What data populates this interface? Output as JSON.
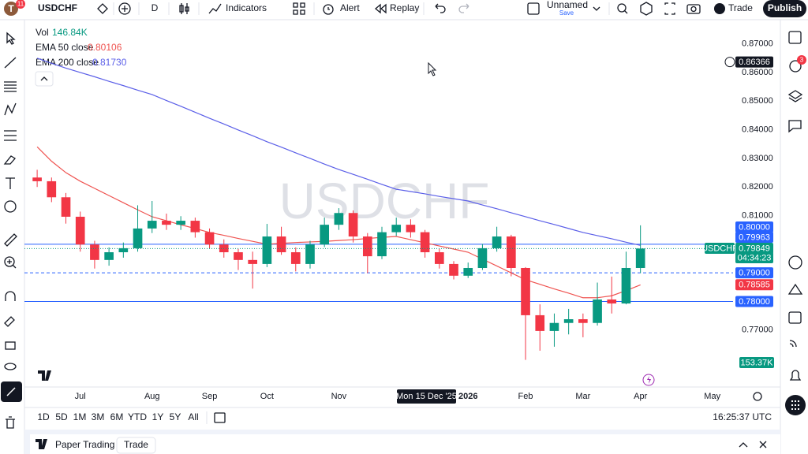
{
  "toolbar": {
    "avatar": "T",
    "avatar_badge": "11",
    "symbol": "USDCHF",
    "interval": "D",
    "indicators": "Indicators",
    "alert": "Alert",
    "replay": "Replay",
    "layout_name": "Unnamed",
    "save": "Save",
    "trade": "Trade",
    "publish": "Publish"
  },
  "side_badge": "3",
  "chart_data": {
    "type": "candlestick",
    "title": "USDCHF",
    "categories": [
      null,
      null,
      null,
      "Jul",
      null,
      null,
      null,
      null,
      "Aug",
      null,
      null,
      null,
      "Sep",
      null,
      null,
      null,
      "Oct",
      null,
      null,
      null,
      null,
      "Nov",
      null,
      null,
      null,
      null,
      null,
      null,
      null,
      null,
      "2026",
      null,
      null,
      null,
      "Feb",
      null,
      null,
      null,
      "Mar",
      null,
      null,
      null,
      "Apr",
      null,
      null,
      null,
      null,
      "May",
      null
    ],
    "open": [
      0.8233,
      0.822,
      0.8164,
      0.8096,
      0.7999,
      0.7945,
      0.7972,
      0.7986,
      0.8055,
      0.8082,
      0.8068,
      0.8082,
      0.8042,
      0.7999,
      0.7972,
      0.7945,
      0.7931,
      0.8027,
      0.7972,
      0.7931,
      0.7999,
      0.8068,
      0.8109,
      0.8027,
      0.7958,
      0.8042,
      0.8068,
      0.8042,
      0.7972,
      0.7931,
      0.789,
      0.7917,
      0.7986,
      0.8027,
      0.7917,
      0.7752,
      0.7697,
      0.7725,
      0.7738,
      0.7725,
      0.7807,
      0.7793,
      0.7917,
      null,
      null,
      null,
      null,
      null,
      null
    ],
    "high": [
      0.826,
      0.8233,
      0.8179,
      0.8114,
      0.8012,
      0.7989,
      0.8006,
      0.8136,
      0.8151,
      0.8107,
      0.8098,
      0.8093,
      0.8055,
      0.8017,
      0.7984,
      0.7974,
      0.8071,
      0.8061,
      0.7989,
      0.8012,
      0.8093,
      0.8126,
      0.8118,
      0.8039,
      0.8061,
      0.8093,
      0.8087,
      0.805,
      0.7984,
      0.7941,
      0.7936,
      0.8001,
      0.8061,
      0.8033,
      0.792,
      0.779,
      0.7758,
      0.7774,
      0.7758,
      0.7866,
      0.7887,
      0.7974,
      0.8066,
      null,
      null,
      null,
      null,
      null,
      null
    ],
    "low": [
      0.82,
      0.8147,
      0.8072,
      0.7974,
      0.7915,
      0.7925,
      0.7953,
      0.7974,
      0.8039,
      0.805,
      0.805,
      0.8023,
      0.7985,
      0.7953,
      0.791,
      0.7845,
      0.792,
      0.7963,
      0.7905,
      0.7915,
      0.799,
      0.805,
      0.8006,
      0.7899,
      0.7948,
      0.8029,
      0.8023,
      0.7953,
      0.7915,
      0.7877,
      0.7882,
      0.791,
      0.7974,
      0.7888,
      0.7596,
      0.7628,
      0.7642,
      0.7685,
      0.7675,
      0.7716,
      0.7758,
      0.779,
      0.7899,
      null,
      null,
      null,
      null,
      null,
      null
    ],
    "close": [
      0.822,
      0.8164,
      0.8096,
      0.7999,
      0.7945,
      0.7972,
      0.7986,
      0.8055,
      0.8082,
      0.8068,
      0.8082,
      0.8042,
      0.7999,
      0.7972,
      0.7945,
      0.7931,
      0.8027,
      0.7972,
      0.7931,
      0.7999,
      0.8068,
      0.8109,
      0.8027,
      0.7958,
      0.8042,
      0.8068,
      0.8042,
      0.7972,
      0.7931,
      0.789,
      0.7917,
      0.7986,
      0.8027,
      0.7917,
      0.7752,
      0.7697,
      0.7725,
      0.7738,
      0.7725,
      0.7807,
      0.7793,
      0.7917,
      0.7985,
      null,
      null,
      null,
      null,
      null,
      null
    ],
    "up_color": "#089981",
    "down_color": "#f23645",
    "series": [
      {
        "name": "EMA 50 close",
        "color": "#ef5350",
        "legend_value": {
          "value": 0.80106,
          "label": "0.80106"
        },
        "last_label": {
          "value": 0.78585,
          "label": "0.78585"
        },
        "values": [
          0.834,
          0.829,
          0.825,
          0.822,
          0.8195,
          0.817,
          0.8145,
          0.812,
          0.8096,
          0.8082,
          0.8068,
          0.8055,
          0.8041,
          0.8031,
          0.802,
          0.801,
          0.8,
          0.8003,
          0.8006,
          0.8008,
          0.801,
          0.8013,
          0.8016,
          0.802,
          0.8024,
          0.8027,
          0.8016,
          0.8005,
          0.7994,
          0.7983,
          0.7972,
          0.7948,
          0.7924,
          0.79,
          0.7876,
          0.786,
          0.7844,
          0.7829,
          0.7813,
          0.7813,
          0.782,
          0.7838,
          0.7858,
          null,
          null,
          null,
          null,
          null,
          null
        ]
      },
      {
        "name": "EMA 200 close",
        "color": "#5b5fe8",
        "legend_value": {
          "value": 0.8173,
          "label": "0.81730"
        },
        "last_label": {
          "value": 0.79963,
          "label": "0.79963"
        },
        "values": [
          0.865,
          0.8632,
          0.8615,
          0.86,
          0.8585,
          0.8569,
          0.8554,
          0.8538,
          0.8523,
          0.8502,
          0.8482,
          0.8461,
          0.844,
          0.842,
          0.8399,
          0.8379,
          0.8358,
          0.8339,
          0.8319,
          0.83,
          0.828,
          0.8261,
          0.8244,
          0.8227,
          0.8209,
          0.8192,
          0.8184,
          0.8176,
          0.8167,
          0.8159,
          0.8151,
          0.8137,
          0.8124,
          0.811,
          0.8096,
          0.8082,
          0.8069,
          0.8055,
          0.8041,
          0.803,
          0.8019,
          0.8007,
          0.7996,
          null,
          null,
          null,
          null,
          null,
          null
        ]
      }
    ],
    "volume": {
      "name": "Vol",
      "color": "#089981",
      "legend_value": {
        "value": 146.84,
        "label": "146.84K"
      },
      "last_label": {
        "value": 153.37,
        "label": "153.37K"
      }
    },
    "last_price": {
      "value": 0.79849,
      "label": "0.79849"
    },
    "countdown": "04:34:23",
    "levels": [
      {
        "value": 0.8,
        "label": "0.80000",
        "style": "solid"
      },
      {
        "value": 0.79,
        "label": "0.79000",
        "style": "dashed"
      },
      {
        "value": 0.78,
        "label": "0.78000",
        "style": "solid"
      }
    ],
    "level_color": "#2962ff",
    "crosshair": {
      "price": {
        "value": 0.86366,
        "label": "0.86366"
      },
      "time": "Mon 15 Dec '25"
    },
    "ylim": [
      0.7504,
      0.8776
    ],
    "yticks": [
      {
        "value": 0.87,
        "label": "0.87000"
      },
      {
        "value": 0.86,
        "label": "0.86000"
      },
      {
        "value": 0.85,
        "label": "0.85000"
      },
      {
        "value": 0.84,
        "label": "0.84000"
      },
      {
        "value": 0.83,
        "label": "0.83000"
      },
      {
        "value": 0.82,
        "label": "0.82000"
      },
      {
        "value": 0.81,
        "label": "0.81000"
      },
      {
        "value": 0.77,
        "label": "0.77000"
      }
    ],
    "grid": false
  },
  "timeframes": [
    "1D",
    "5D",
    "1M",
    "3M",
    "6M",
    "YTD",
    "1Y",
    "5Y",
    "All"
  ],
  "clock": "16:25:37 UTC",
  "bottom_panel": {
    "title": "Paper Trading",
    "button": "Trade"
  }
}
